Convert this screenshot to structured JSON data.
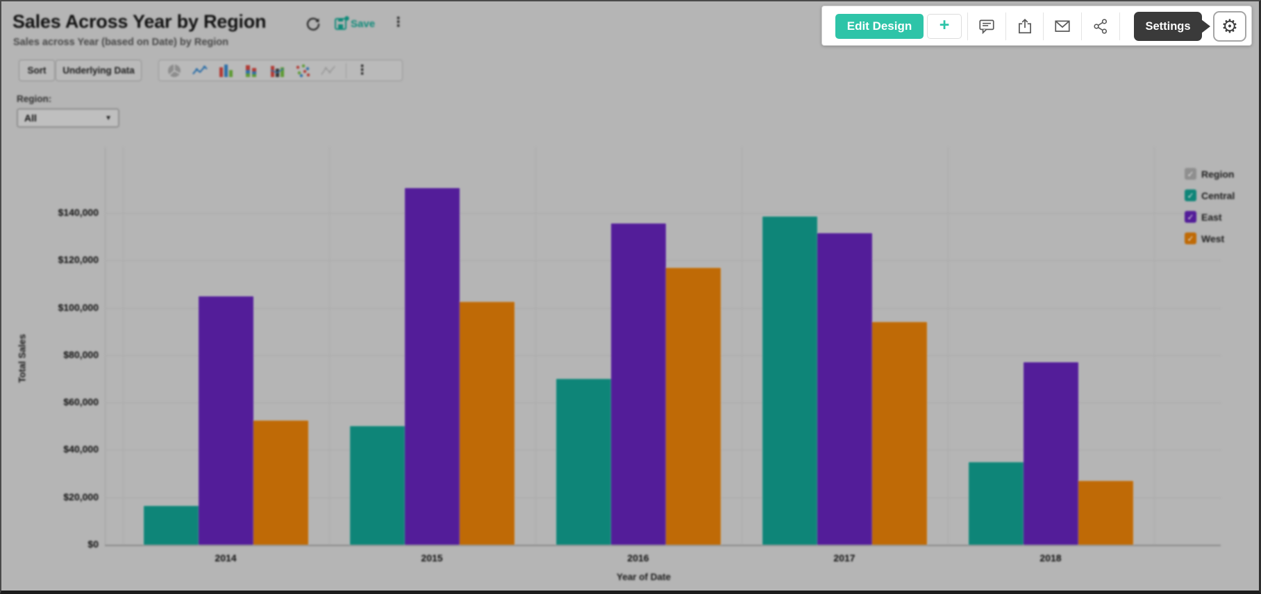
{
  "header": {
    "title": "Sales Across Year by Region",
    "subtitle": "Sales across Year (based on Date) by Region",
    "save_label": "Save",
    "menu_glyph": "⋮"
  },
  "focus_toolbar": {
    "edit_design_label": "Edit Design",
    "add_label": "+",
    "settings_tooltip": "Settings",
    "gear_glyph": "⚙",
    "accent_color": "#2ec4a8",
    "tooltip_bg": "#3a3a3a"
  },
  "toolbar": {
    "sort_label": "Sort",
    "underlying_data_label": "Underlying Data",
    "chart_type_icons": [
      "pie-chart-icon",
      "line-chart-icon",
      "column-chart-icon",
      "stacked-column-chart-icon",
      "bar-line-chart-icon",
      "scatter-chart-icon",
      "polygon-chart-icon"
    ],
    "menu_glyph": "⋮"
  },
  "filter": {
    "label": "Region:",
    "value": "All"
  },
  "chart_data": {
    "type": "bar",
    "categories": [
      "2014",
      "2015",
      "2016",
      "2017",
      "2018"
    ],
    "series": [
      {
        "name": "Central",
        "color": "#0e8578",
        "values": [
          16500,
          50000,
          70000,
          138500,
          35000
        ]
      },
      {
        "name": "East",
        "color": "#531d99",
        "values": [
          105000,
          150500,
          135500,
          131500,
          77000
        ]
      },
      {
        "name": "West",
        "color": "#bf6a06",
        "values": [
          52500,
          102500,
          117000,
          94000,
          27000
        ]
      }
    ],
    "xlabel": "Year of Date",
    "ylabel": "Total Sales",
    "ylim": [
      0,
      150000
    ],
    "ytick_step": 20000,
    "ytick_prefix": "$",
    "grid": true,
    "legend": {
      "position": "right",
      "title": "Region",
      "title_box_color": "#8f8f8f",
      "all_checked": true,
      "check_glyph": "✓"
    }
  }
}
